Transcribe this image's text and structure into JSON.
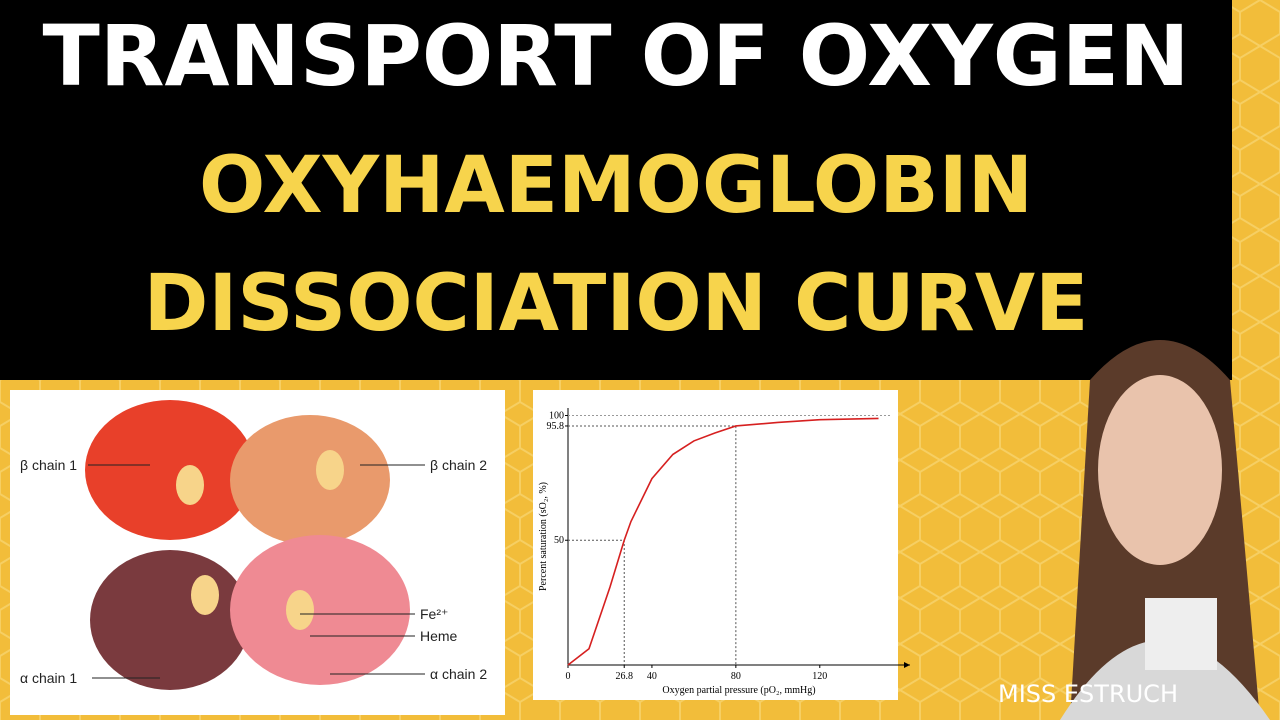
{
  "header": {
    "title": "TRANSPORT OF OXYGEN",
    "subtitle_lines": [
      "OXYHAEMOGLOBIN",
      "DISSOCIATION CURVE"
    ]
  },
  "hemoglobin_figure": {
    "labels": [
      "β chain 1",
      "β chain 2",
      "Fe²⁺",
      "Heme",
      "α chain 1",
      "α chain 2"
    ]
  },
  "chart_data": {
    "type": "line",
    "x_label": "Oxygen partial pressure (pO₂, mmHg)",
    "y_label": "Percent saturation (sO₂, %)",
    "x": [
      0,
      10,
      20,
      26.8,
      30,
      40,
      50,
      60,
      70,
      80,
      100,
      120,
      148
    ],
    "series": [
      {
        "color": "#d62020",
        "values": [
          0,
          6.5,
          31.2,
          50,
          57.5,
          74.7,
          84.4,
          89.8,
          93.0,
          95.8,
          97.2,
          98.3,
          98.8
        ]
      }
    ],
    "xlim": [
      0,
      163
    ],
    "ylim": [
      0,
      103
    ],
    "xticks": [
      0,
      26.8,
      40,
      80,
      120
    ],
    "yticks": [
      50,
      95.8,
      100
    ],
    "guides": [
      [
        26.8,
        50
      ],
      [
        80,
        95.8
      ]
    ]
  },
  "author": "MISS ESTRUCH"
}
